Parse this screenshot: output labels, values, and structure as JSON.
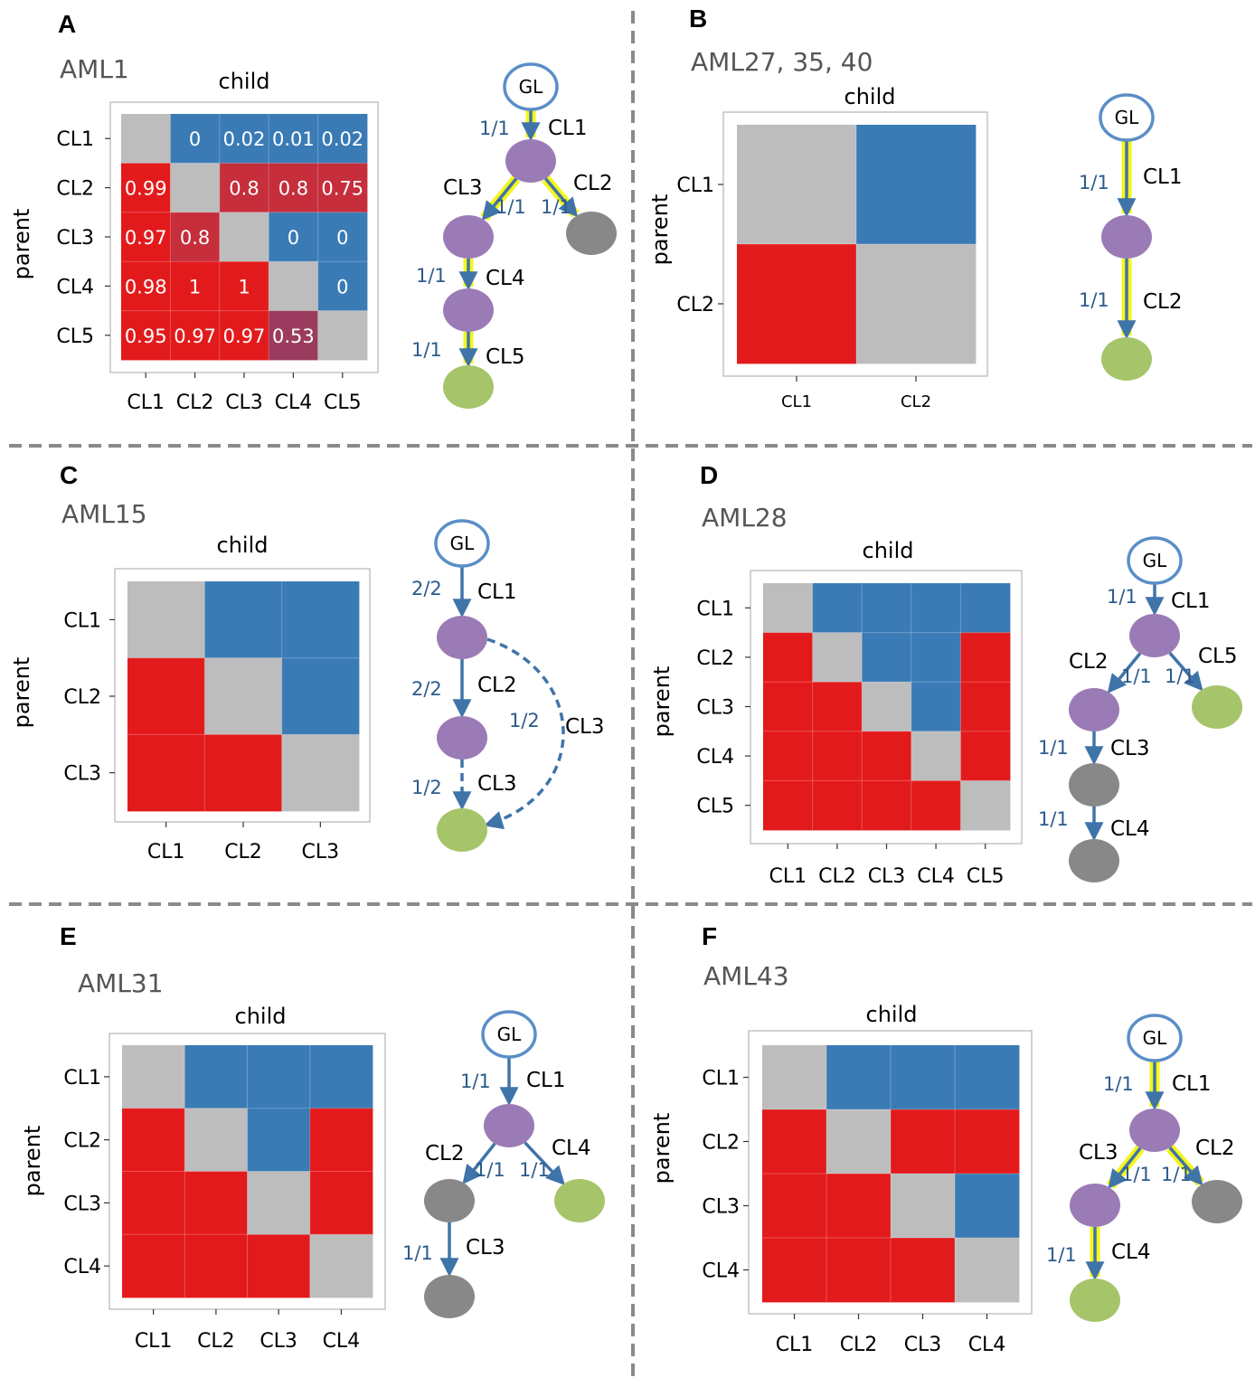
{
  "colors": {
    "red": "#e31a1c",
    "blue": "#3a7bb6",
    "gray_cell": "#bdbdbd",
    "mid_red": "#c62e3b",
    "muted_purple_red": "#9b3c5e",
    "edge": "#3f74a9",
    "highlight": "#f5f51a",
    "node_purple": "#9b7bb6",
    "node_gray": "#888888",
    "node_green": "#a6c46a",
    "gl_stroke": "#5b8ec7",
    "divider": "#8a8a8a"
  },
  "chart_data": [
    {
      "panel": "A",
      "sample": "AML1",
      "type": "heatmap",
      "xlabel": "child",
      "ylabel": "parent",
      "x": [
        "CL1",
        "CL2",
        "CL3",
        "CL4",
        "CL5"
      ],
      "y": [
        "CL1",
        "CL2",
        "CL3",
        "CL4",
        "CL5"
      ],
      "cells": [
        [
          "diag",
          "blue",
          "blue",
          "blue",
          "blue"
        ],
        [
          "red",
          "diag",
          "mid",
          "mid",
          "mid"
        ],
        [
          "red",
          "mid",
          "diag",
          "blue",
          "blue"
        ],
        [
          "red",
          "red",
          "red",
          "diag",
          "blue"
        ],
        [
          "red",
          "red",
          "red",
          "muted",
          "diag"
        ]
      ],
      "labels": [
        [
          "",
          "0",
          "0.02",
          "0.01",
          "0.02"
        ],
        [
          "0.99",
          "",
          "0.8",
          "0.8",
          "0.75"
        ],
        [
          "0.97",
          "0.8",
          "",
          "0",
          "0"
        ],
        [
          "0.98",
          "1",
          "1",
          "",
          "0"
        ],
        [
          "0.95",
          "0.97",
          "0.97",
          "0.53",
          ""
        ]
      ],
      "tree": {
        "nodes": [
          {
            "id": "GL",
            "label": "GL",
            "kind": "gl"
          },
          {
            "id": "n1",
            "kind": "purple"
          },
          {
            "id": "n3",
            "kind": "purple"
          },
          {
            "id": "n2",
            "kind": "gray"
          },
          {
            "id": "n4",
            "kind": "purple"
          },
          {
            "id": "n5",
            "kind": "green"
          }
        ],
        "edges": [
          {
            "from": "GL",
            "to": "n1",
            "label": "CL1",
            "frac": "1/1",
            "highlight": true
          },
          {
            "from": "n1",
            "to": "n3",
            "label": "CL3",
            "frac": "1/1",
            "highlight": true
          },
          {
            "from": "n1",
            "to": "n2",
            "label": "CL2",
            "frac": "1/1",
            "highlight": true
          },
          {
            "from": "n3",
            "to": "n4",
            "label": "CL4",
            "frac": "1/1",
            "highlight": true
          },
          {
            "from": "n4",
            "to": "n5",
            "label": "CL5",
            "frac": "1/1",
            "highlight": true
          }
        ]
      }
    },
    {
      "panel": "B",
      "sample": "AML27, 35, 40",
      "type": "heatmap",
      "xlabel": "child",
      "ylabel": "parent",
      "x": [
        "CL1",
        "CL2"
      ],
      "y": [
        "CL1",
        "CL2"
      ],
      "cells": [
        [
          "diag",
          "blue"
        ],
        [
          "red",
          "diag"
        ]
      ],
      "tree": {
        "nodes": [
          {
            "id": "GL",
            "label": "GL",
            "kind": "gl"
          },
          {
            "id": "n1",
            "kind": "purple"
          },
          {
            "id": "n2",
            "kind": "green"
          }
        ],
        "edges": [
          {
            "from": "GL",
            "to": "n1",
            "label": "CL1",
            "frac": "1/1",
            "highlight": true
          },
          {
            "from": "n1",
            "to": "n2",
            "label": "CL2",
            "frac": "1/1",
            "highlight": true
          }
        ]
      }
    },
    {
      "panel": "C",
      "sample": "AML15",
      "type": "heatmap",
      "xlabel": "child",
      "ylabel": "parent",
      "x": [
        "CL1",
        "CL2",
        "CL3"
      ],
      "y": [
        "CL1",
        "CL2",
        "CL3"
      ],
      "cells": [
        [
          "diag",
          "blue",
          "blue"
        ],
        [
          "red",
          "diag",
          "blue"
        ],
        [
          "red",
          "red",
          "diag"
        ]
      ],
      "tree": {
        "nodes": [
          {
            "id": "GL",
            "label": "GL",
            "kind": "gl"
          },
          {
            "id": "n1",
            "kind": "purple"
          },
          {
            "id": "n2",
            "kind": "purple"
          },
          {
            "id": "n3",
            "kind": "green"
          }
        ],
        "edges": [
          {
            "from": "GL",
            "to": "n1",
            "label": "CL1",
            "frac": "2/2"
          },
          {
            "from": "n1",
            "to": "n2",
            "label": "CL2",
            "frac": "2/2"
          },
          {
            "from": "n2",
            "to": "n3",
            "label": "CL3",
            "frac": "1/2",
            "dashed": true
          },
          {
            "from": "n1",
            "to": "n3",
            "label": "CL3",
            "frac": "1/2",
            "dashed": true,
            "curved": true
          }
        ]
      }
    },
    {
      "panel": "D",
      "sample": "AML28",
      "type": "heatmap",
      "xlabel": "child",
      "ylabel": "parent",
      "x": [
        "CL1",
        "CL2",
        "CL3",
        "CL4",
        "CL5"
      ],
      "y": [
        "CL1",
        "CL2",
        "CL3",
        "CL4",
        "CL5"
      ],
      "cells": [
        [
          "diag",
          "blue",
          "blue",
          "blue",
          "blue"
        ],
        [
          "red",
          "diag",
          "blue",
          "blue",
          "red"
        ],
        [
          "red",
          "red",
          "diag",
          "blue",
          "red"
        ],
        [
          "red",
          "red",
          "red",
          "diag",
          "red"
        ],
        [
          "red",
          "red",
          "red",
          "red",
          "diag"
        ]
      ],
      "tree": {
        "nodes": [
          {
            "id": "GL",
            "label": "GL",
            "kind": "gl"
          },
          {
            "id": "n1",
            "kind": "purple"
          },
          {
            "id": "n2",
            "kind": "purple"
          },
          {
            "id": "n5",
            "kind": "green"
          },
          {
            "id": "n3",
            "kind": "gray"
          },
          {
            "id": "n4",
            "kind": "gray"
          }
        ],
        "edges": [
          {
            "from": "GL",
            "to": "n1",
            "label": "CL1",
            "frac": "1/1"
          },
          {
            "from": "n1",
            "to": "n2",
            "label": "CL2",
            "frac": "1/1"
          },
          {
            "from": "n1",
            "to": "n5",
            "label": "CL5",
            "frac": "1/1"
          },
          {
            "from": "n2",
            "to": "n3",
            "label": "CL3",
            "frac": "1/1"
          },
          {
            "from": "n3",
            "to": "n4",
            "label": "CL4",
            "frac": "1/1"
          }
        ]
      }
    },
    {
      "panel": "E",
      "sample": "AML31",
      "type": "heatmap",
      "xlabel": "child",
      "ylabel": "parent",
      "x": [
        "CL1",
        "CL2",
        "CL3",
        "CL4"
      ],
      "y": [
        "CL1",
        "CL2",
        "CL3",
        "CL4"
      ],
      "cells": [
        [
          "diag",
          "blue",
          "blue",
          "blue"
        ],
        [
          "red",
          "diag",
          "blue",
          "red"
        ],
        [
          "red",
          "red",
          "diag",
          "red"
        ],
        [
          "red",
          "red",
          "red",
          "diag"
        ]
      ],
      "tree": {
        "nodes": [
          {
            "id": "GL",
            "label": "GL",
            "kind": "gl"
          },
          {
            "id": "n1",
            "kind": "purple"
          },
          {
            "id": "n2",
            "kind": "gray"
          },
          {
            "id": "n4",
            "kind": "green"
          },
          {
            "id": "n3",
            "kind": "gray"
          }
        ],
        "edges": [
          {
            "from": "GL",
            "to": "n1",
            "label": "CL1",
            "frac": "1/1"
          },
          {
            "from": "n1",
            "to": "n2",
            "label": "CL2",
            "frac": "1/1"
          },
          {
            "from": "n1",
            "to": "n4",
            "label": "CL4",
            "frac": "1/1"
          },
          {
            "from": "n2",
            "to": "n3",
            "label": "CL3",
            "frac": "1/1"
          }
        ]
      }
    },
    {
      "panel": "F",
      "sample": "AML43",
      "type": "heatmap",
      "xlabel": "child",
      "ylabel": "parent",
      "x": [
        "CL1",
        "CL2",
        "CL3",
        "CL4"
      ],
      "y": [
        "CL1",
        "CL2",
        "CL3",
        "CL4"
      ],
      "cells": [
        [
          "diag",
          "blue",
          "blue",
          "blue"
        ],
        [
          "red",
          "diag",
          "red",
          "red"
        ],
        [
          "red",
          "red",
          "diag",
          "blue"
        ],
        [
          "red",
          "red",
          "red",
          "diag"
        ]
      ],
      "tree": {
        "nodes": [
          {
            "id": "GL",
            "label": "GL",
            "kind": "gl"
          },
          {
            "id": "n1",
            "kind": "purple"
          },
          {
            "id": "n3",
            "kind": "purple"
          },
          {
            "id": "n2",
            "kind": "gray"
          },
          {
            "id": "n4",
            "kind": "green"
          }
        ],
        "edges": [
          {
            "from": "GL",
            "to": "n1",
            "label": "CL1",
            "frac": "1/1",
            "highlight": true
          },
          {
            "from": "n1",
            "to": "n3",
            "label": "CL3",
            "frac": "1/1",
            "highlight": true
          },
          {
            "from": "n1",
            "to": "n2",
            "label": "CL2",
            "frac": "1/1",
            "highlight": true
          },
          {
            "from": "n3",
            "to": "n4",
            "label": "CL4",
            "frac": "1/1",
            "highlight": true
          }
        ]
      }
    }
  ]
}
